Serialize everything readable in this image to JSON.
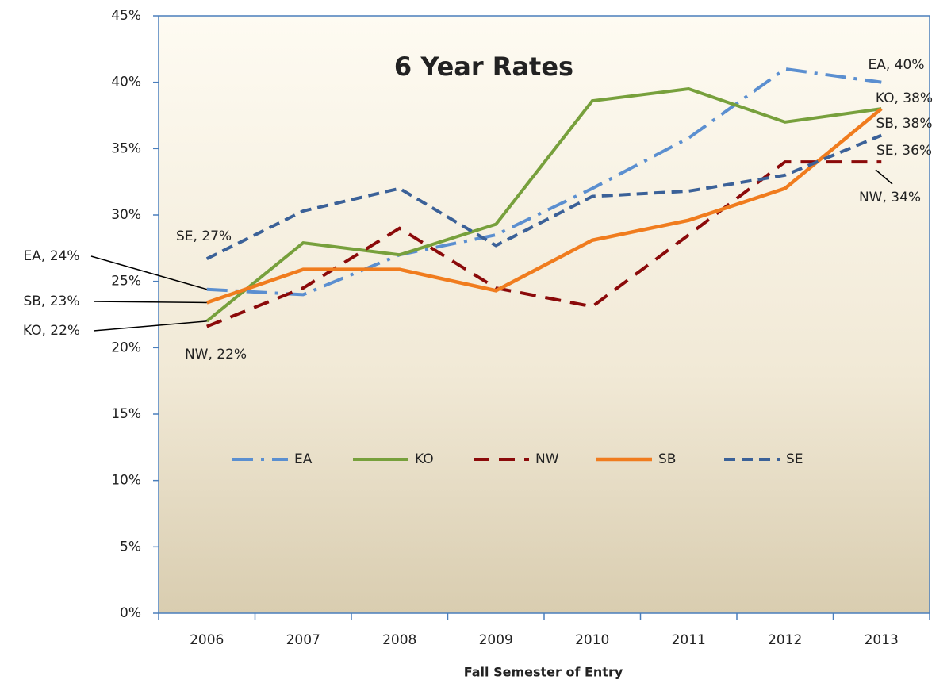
{
  "chart_data": {
    "type": "line",
    "title": "6 Year Rates",
    "x_label": "Fall Semester of Entry",
    "categories": [
      "2006",
      "2007",
      "2008",
      "2009",
      "2010",
      "2011",
      "2012",
      "2013"
    ],
    "series": [
      {
        "name": "EA",
        "color": "#5b8fd0",
        "values": [
          24.4,
          24.0,
          27.0,
          28.5,
          32.0,
          35.8,
          41.0,
          40.0
        ],
        "value_labels": [
          "EA, 24%",
          null,
          null,
          null,
          null,
          null,
          null,
          "EA, 40%"
        ]
      },
      {
        "name": "KO",
        "color": "#77a03c",
        "values": [
          22.0,
          27.9,
          27.0,
          29.3,
          38.6,
          39.5,
          37.0,
          38.0
        ],
        "value_labels": [
          "KO, 22%",
          null,
          null,
          null,
          null,
          null,
          null,
          "KO, 38%"
        ]
      },
      {
        "name": "NW",
        "color": "#8b0a0a",
        "values": [
          21.6,
          24.5,
          29.0,
          24.5,
          23.1,
          28.5,
          34.0,
          34.0
        ],
        "value_labels": [
          "NW, 22%",
          null,
          null,
          null,
          null,
          null,
          null,
          "NW, 34%"
        ]
      },
      {
        "name": "SB",
        "color": "#f07c1e",
        "values": [
          23.4,
          25.9,
          25.9,
          24.3,
          28.1,
          29.6,
          32.0,
          38.0
        ],
        "value_labels": [
          "SB, 23%",
          null,
          null,
          null,
          null,
          null,
          null,
          "SB, 38%"
        ]
      },
      {
        "name": "SE",
        "color": "#3b6198",
        "values": [
          26.7,
          30.3,
          32.0,
          27.7,
          31.4,
          31.8,
          33.0,
          36.0
        ],
        "value_labels": [
          "SE, 27%",
          null,
          null,
          null,
          null,
          null,
          null,
          "SE, 36%"
        ]
      }
    ],
    "ylim": [
      0,
      45
    ],
    "yticks": [
      {
        "value": 0,
        "label": "0%"
      },
      {
        "value": 5,
        "label": "5%"
      },
      {
        "value": 10,
        "label": "10%"
      },
      {
        "value": 15,
        "label": "15%"
      },
      {
        "value": 20,
        "label": "20%"
      },
      {
        "value": 25,
        "label": "25%"
      },
      {
        "value": 30,
        "label": "30%"
      },
      {
        "value": 35,
        "label": "35%"
      },
      {
        "value": 40,
        "label": "40%"
      },
      {
        "value": 45,
        "label": "45%"
      }
    ],
    "grid": false,
    "legend": "center"
  }
}
